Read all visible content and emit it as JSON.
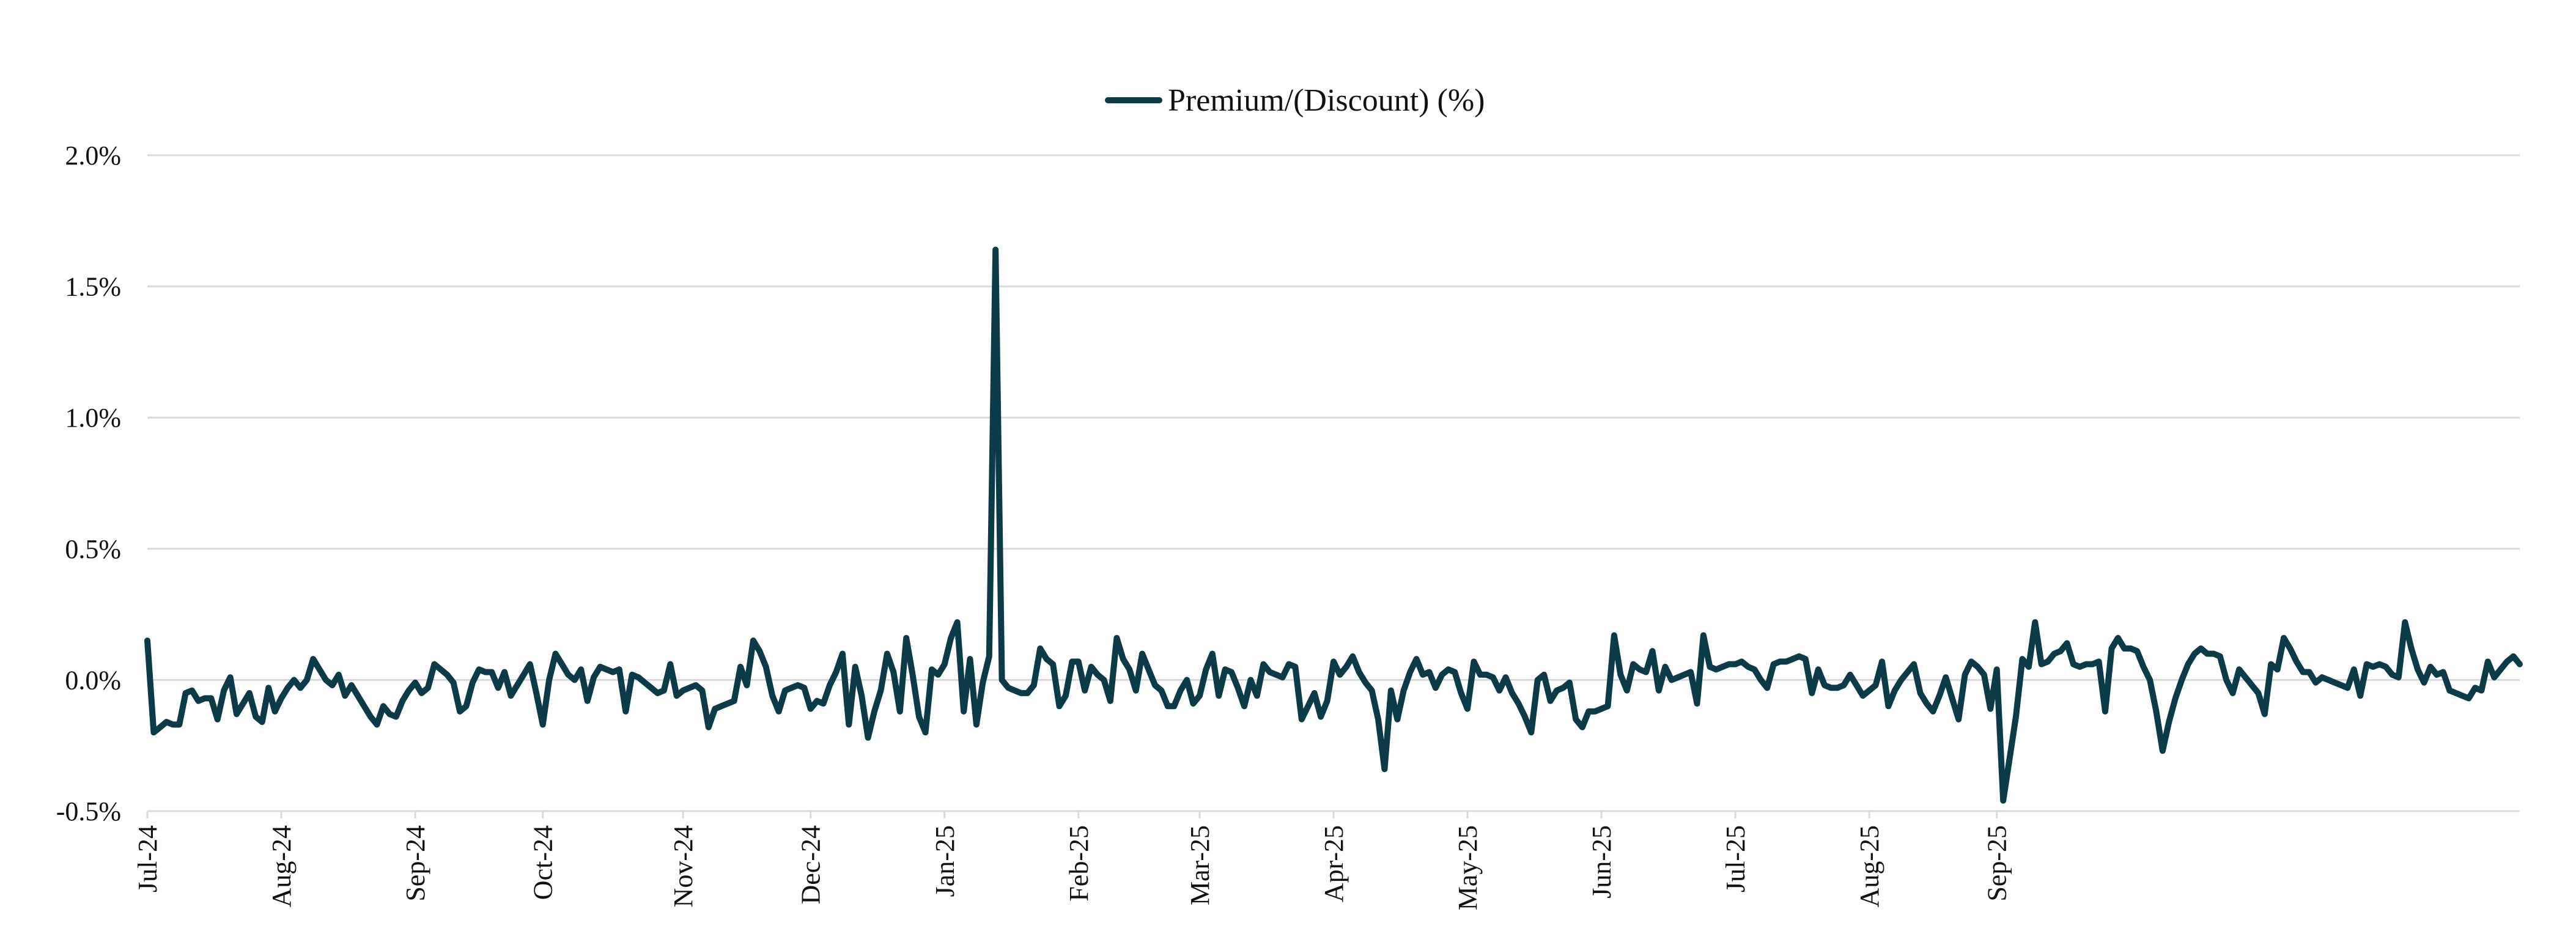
{
  "chart_data": {
    "type": "line",
    "title": "",
    "xlabel": "",
    "ylabel": "",
    "legend": {
      "position": "top-center",
      "entries": [
        "Premium/(Discount) (%)"
      ]
    },
    "ylim": [
      -0.5,
      2.0
    ],
    "y_ticks": [
      -0.5,
      0.0,
      0.5,
      1.0,
      1.5,
      2.0
    ],
    "y_tick_labels": [
      "-0.5%",
      "0.0%",
      "0.5%",
      "1.0%",
      "1.5%",
      "2.0%"
    ],
    "x_tick_labels": [
      "Jul-24",
      "Aug-24",
      "Sep-24",
      "Oct-24",
      "Nov-24",
      "Dec-24",
      "Jan-25",
      "Feb-25",
      "Mar-25",
      "Apr-25",
      "May-25",
      "Jun-25",
      "Jul-25",
      "Aug-25",
      "Sep-25"
    ],
    "x_tick_positions": [
      0,
      21,
      42,
      62,
      84,
      104,
      125,
      146,
      165,
      186,
      207,
      228,
      249,
      270,
      290
    ],
    "grid": true,
    "series": [
      {
        "name": "Premium/(Discount) (%)",
        "color": "#0b3a48",
        "values": [
          0.15,
          -0.2,
          -0.18,
          -0.16,
          -0.17,
          -0.17,
          -0.05,
          -0.04,
          -0.08,
          -0.07,
          -0.07,
          -0.15,
          -0.04,
          0.01,
          -0.13,
          -0.09,
          -0.05,
          -0.14,
          -0.16,
          -0.03,
          -0.12,
          -0.07,
          -0.03,
          0.0,
          -0.03,
          0.0,
          0.08,
          0.04,
          0.0,
          -0.02,
          0.02,
          -0.06,
          -0.02,
          -0.06,
          -0.1,
          -0.14,
          -0.17,
          -0.1,
          -0.13,
          -0.14,
          -0.08,
          -0.04,
          -0.01,
          -0.05,
          -0.03,
          0.06,
          0.04,
          0.02,
          -0.01,
          -0.12,
          -0.1,
          -0.01,
          0.04,
          0.03,
          0.03,
          -0.03,
          0.03,
          -0.06,
          -0.02,
          0.02,
          0.06,
          -0.05,
          -0.17,
          0.0,
          0.1,
          0.06,
          0.02,
          0.0,
          0.04,
          -0.08,
          0.01,
          0.05,
          0.04,
          0.03,
          0.04,
          -0.12,
          0.02,
          0.01,
          -0.01,
          -0.03,
          -0.05,
          -0.04,
          0.06,
          -0.06,
          -0.04,
          -0.03,
          -0.02,
          -0.04,
          -0.18,
          -0.11,
          -0.1,
          -0.09,
          -0.08,
          0.05,
          -0.02,
          0.15,
          0.11,
          0.05,
          -0.06,
          -0.12,
          -0.04,
          -0.03,
          -0.02,
          -0.03,
          -0.11,
          -0.08,
          -0.09,
          -0.02,
          0.03,
          0.1,
          -0.17,
          0.05,
          -0.06,
          -0.22,
          -0.12,
          -0.04,
          0.1,
          0.03,
          -0.12,
          0.16,
          0.02,
          -0.14,
          -0.2,
          0.04,
          0.02,
          0.06,
          0.16,
          0.22,
          -0.12,
          0.08,
          -0.17,
          -0.01,
          0.09,
          1.64,
          0.0,
          -0.03,
          -0.04,
          -0.05,
          -0.05,
          -0.02,
          0.12,
          0.08,
          0.06,
          -0.1,
          -0.06,
          0.07,
          0.07,
          -0.04,
          0.05,
          0.02,
          0.0,
          -0.08,
          0.16,
          0.08,
          0.04,
          -0.04,
          0.1,
          0.04,
          -0.02,
          -0.04,
          -0.1,
          -0.1,
          -0.04,
          0.0,
          -0.09,
          -0.06,
          0.04,
          0.1,
          -0.06,
          0.04,
          0.03,
          -0.03,
          -0.1,
          0.0,
          -0.06,
          0.06,
          0.03,
          0.02,
          0.01,
          0.06,
          0.05,
          -0.15,
          -0.1,
          -0.05,
          -0.14,
          -0.08,
          0.07,
          0.02,
          0.05,
          0.09,
          0.03,
          -0.01,
          -0.04,
          -0.15,
          -0.34,
          -0.04,
          -0.15,
          -0.04,
          0.03,
          0.08,
          0.02,
          0.03,
          -0.03,
          0.02,
          0.04,
          0.03,
          -0.05,
          -0.11,
          0.07,
          0.02,
          0.02,
          0.01,
          -0.04,
          0.01,
          -0.05,
          -0.09,
          -0.14,
          -0.2,
          0.0,
          0.02,
          -0.08,
          -0.04,
          -0.03,
          -0.01,
          -0.15,
          -0.18,
          -0.12,
          -0.12,
          -0.11,
          -0.1,
          0.17,
          0.02,
          -0.04,
          0.06,
          0.04,
          0.03,
          0.11,
          -0.04,
          0.05,
          0.0,
          0.01,
          0.02,
          0.03,
          -0.09,
          0.17,
          0.05,
          0.04,
          0.05,
          0.06,
          0.06,
          0.07,
          0.05,
          0.04,
          0.0,
          -0.03,
          0.06,
          0.07,
          0.07,
          0.08,
          0.09,
          0.08,
          -0.05,
          0.04,
          -0.02,
          -0.03,
          -0.03,
          -0.02,
          0.02,
          -0.02,
          -0.06,
          -0.04,
          -0.02,
          0.07,
          -0.1,
          -0.04,
          0.0,
          0.03,
          0.06,
          -0.05,
          -0.09,
          -0.12,
          -0.06,
          0.01,
          -0.07,
          -0.15,
          0.02,
          0.07,
          0.05,
          0.02,
          -0.11,
          0.04,
          -0.46,
          -0.3,
          -0.14,
          0.08,
          0.05,
          0.22,
          0.06,
          0.07,
          0.1,
          0.11,
          0.14,
          0.06,
          0.05,
          0.06,
          0.06,
          0.07,
          -0.12,
          0.12,
          0.16,
          0.12,
          0.12,
          0.11,
          0.05,
          0.0,
          -0.12,
          -0.27,
          -0.16,
          -0.07,
          0.0,
          0.06,
          0.1,
          0.12,
          0.1,
          0.1,
          0.09,
          0.0,
          -0.05,
          0.04,
          0.01,
          -0.02,
          -0.05,
          -0.13,
          0.06,
          0.04,
          0.16,
          0.12,
          0.07,
          0.03,
          0.03,
          -0.01,
          0.01,
          0.0,
          -0.01,
          -0.02,
          -0.03,
          0.04,
          -0.06,
          0.06,
          0.05,
          0.06,
          0.05,
          0.02,
          0.01,
          0.22,
          0.12,
          0.04,
          -0.01,
          0.05,
          0.02,
          0.03,
          -0.04,
          -0.05,
          -0.06,
          -0.07,
          -0.03,
          -0.04,
          0.07,
          0.01,
          0.04,
          0.07,
          0.09,
          0.06
        ]
      }
    ]
  }
}
